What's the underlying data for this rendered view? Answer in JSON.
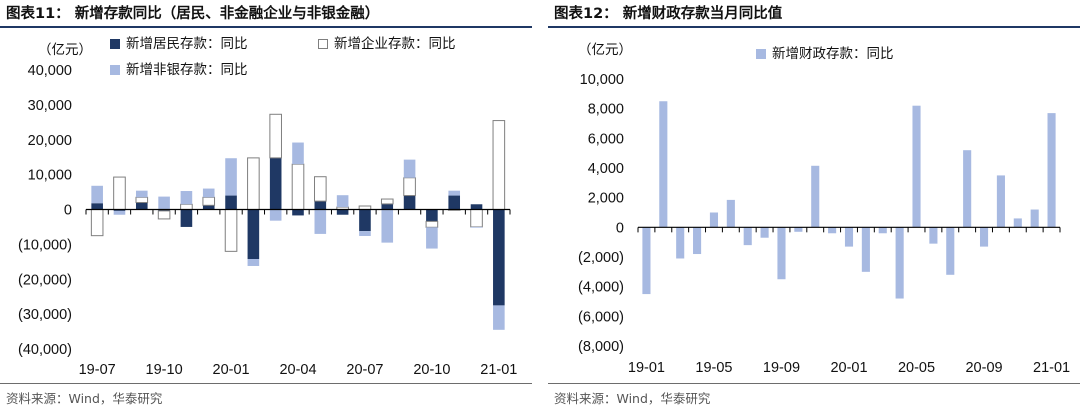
{
  "panels": [
    {
      "figure_title": "图表11： 新增存款同比（居民、非金融企业与非银金融）",
      "unit": "（亿元）",
      "source": "资料来源：Wind，华泰研究"
    },
    {
      "figure_title": "图表12： 新增财政存款当月同比值",
      "unit": "（亿元）",
      "source": "资料来源：Wind，华泰研究"
    }
  ],
  "colors": {
    "navy": "#1f3864",
    "light_blue": "#a7b9e1",
    "white_fill": "#ffffff",
    "bar_outline": "#7f7f7f",
    "rule": "#1f3864"
  },
  "chart_data": [
    {
      "type": "bar",
      "stacked": true,
      "categories": [
        "19-07",
        "19-08",
        "19-09",
        "19-10",
        "19-11",
        "19-12",
        "20-01",
        "20-02",
        "20-03",
        "20-04",
        "20-05",
        "20-06",
        "20-07",
        "20-08",
        "20-09",
        "20-10",
        "20-11",
        "20-12",
        "21-01"
      ],
      "x_tick_labels": [
        "19-07",
        "19-10",
        "20-01",
        "20-04",
        "20-07",
        "20-10",
        "21-01"
      ],
      "y_tick_labels": [
        "40,000",
        "30,000",
        "20,000",
        "10,000",
        "0",
        "(10,000)",
        "(20,000)",
        "(30,000)",
        "(40,000)"
      ],
      "ylim": [
        -40000,
        40000
      ],
      "legend_position": "top",
      "series": [
        {
          "name": "新增居民存款：同比",
          "color": "navy",
          "values": [
            1800,
            -400,
            2000,
            -400,
            -5000,
            1200,
            4000,
            -14200,
            14800,
            -1700,
            2400,
            -1500,
            -6200,
            1600,
            4000,
            -3400,
            4000,
            1500,
            -27500
          ]
        },
        {
          "name": "新增企业存款：同比",
          "color": "white_fill",
          "values": [
            -7500,
            9300,
            1500,
            -2300,
            1500,
            2300,
            -12000,
            14800,
            12500,
            13000,
            7000,
            700,
            1000,
            1400,
            5100,
            -1700,
            -200,
            -5000,
            25500
          ]
        },
        {
          "name": "新增非银存款：同比",
          "color": "light_blue",
          "values": [
            5000,
            -1100,
            1900,
            3700,
            3800,
            2500,
            10700,
            -2000,
            -3200,
            6200,
            -7000,
            3400,
            -1400,
            -9500,
            5200,
            -6100,
            1400,
            -200,
            -7000
          ]
        }
      ]
    },
    {
      "type": "bar",
      "categories": [
        "19-01",
        "19-02",
        "19-03",
        "19-04",
        "19-05",
        "19-06",
        "19-07",
        "19-08",
        "19-09",
        "19-10",
        "19-11",
        "19-12",
        "20-01",
        "20-02",
        "20-03",
        "20-04",
        "20-05",
        "20-06",
        "20-07",
        "20-08",
        "20-09",
        "20-10",
        "20-11",
        "20-12",
        "21-01"
      ],
      "x_tick_labels": [
        "19-01",
        "19-05",
        "19-09",
        "20-01",
        "20-05",
        "20-09",
        "21-01"
      ],
      "y_tick_labels": [
        "10,000",
        "8,000",
        "6,000",
        "4,000",
        "2,000",
        "0",
        "(2,000)",
        "(4,000)",
        "(6,000)",
        "(8,000)"
      ],
      "ylim": [
        -8000,
        10000
      ],
      "legend_position": "top",
      "series": [
        {
          "name": "新增财政存款：同比",
          "color": "light_blue",
          "values": [
            -4500,
            8500,
            -2100,
            -1800,
            1000,
            1850,
            -1200,
            -700,
            -3500,
            -300,
            4150,
            -400,
            -1300,
            -3000,
            -400,
            -4800,
            8200,
            -1100,
            -3200,
            5200,
            -1300,
            3500,
            600,
            1200,
            7700
          ]
        }
      ]
    }
  ]
}
